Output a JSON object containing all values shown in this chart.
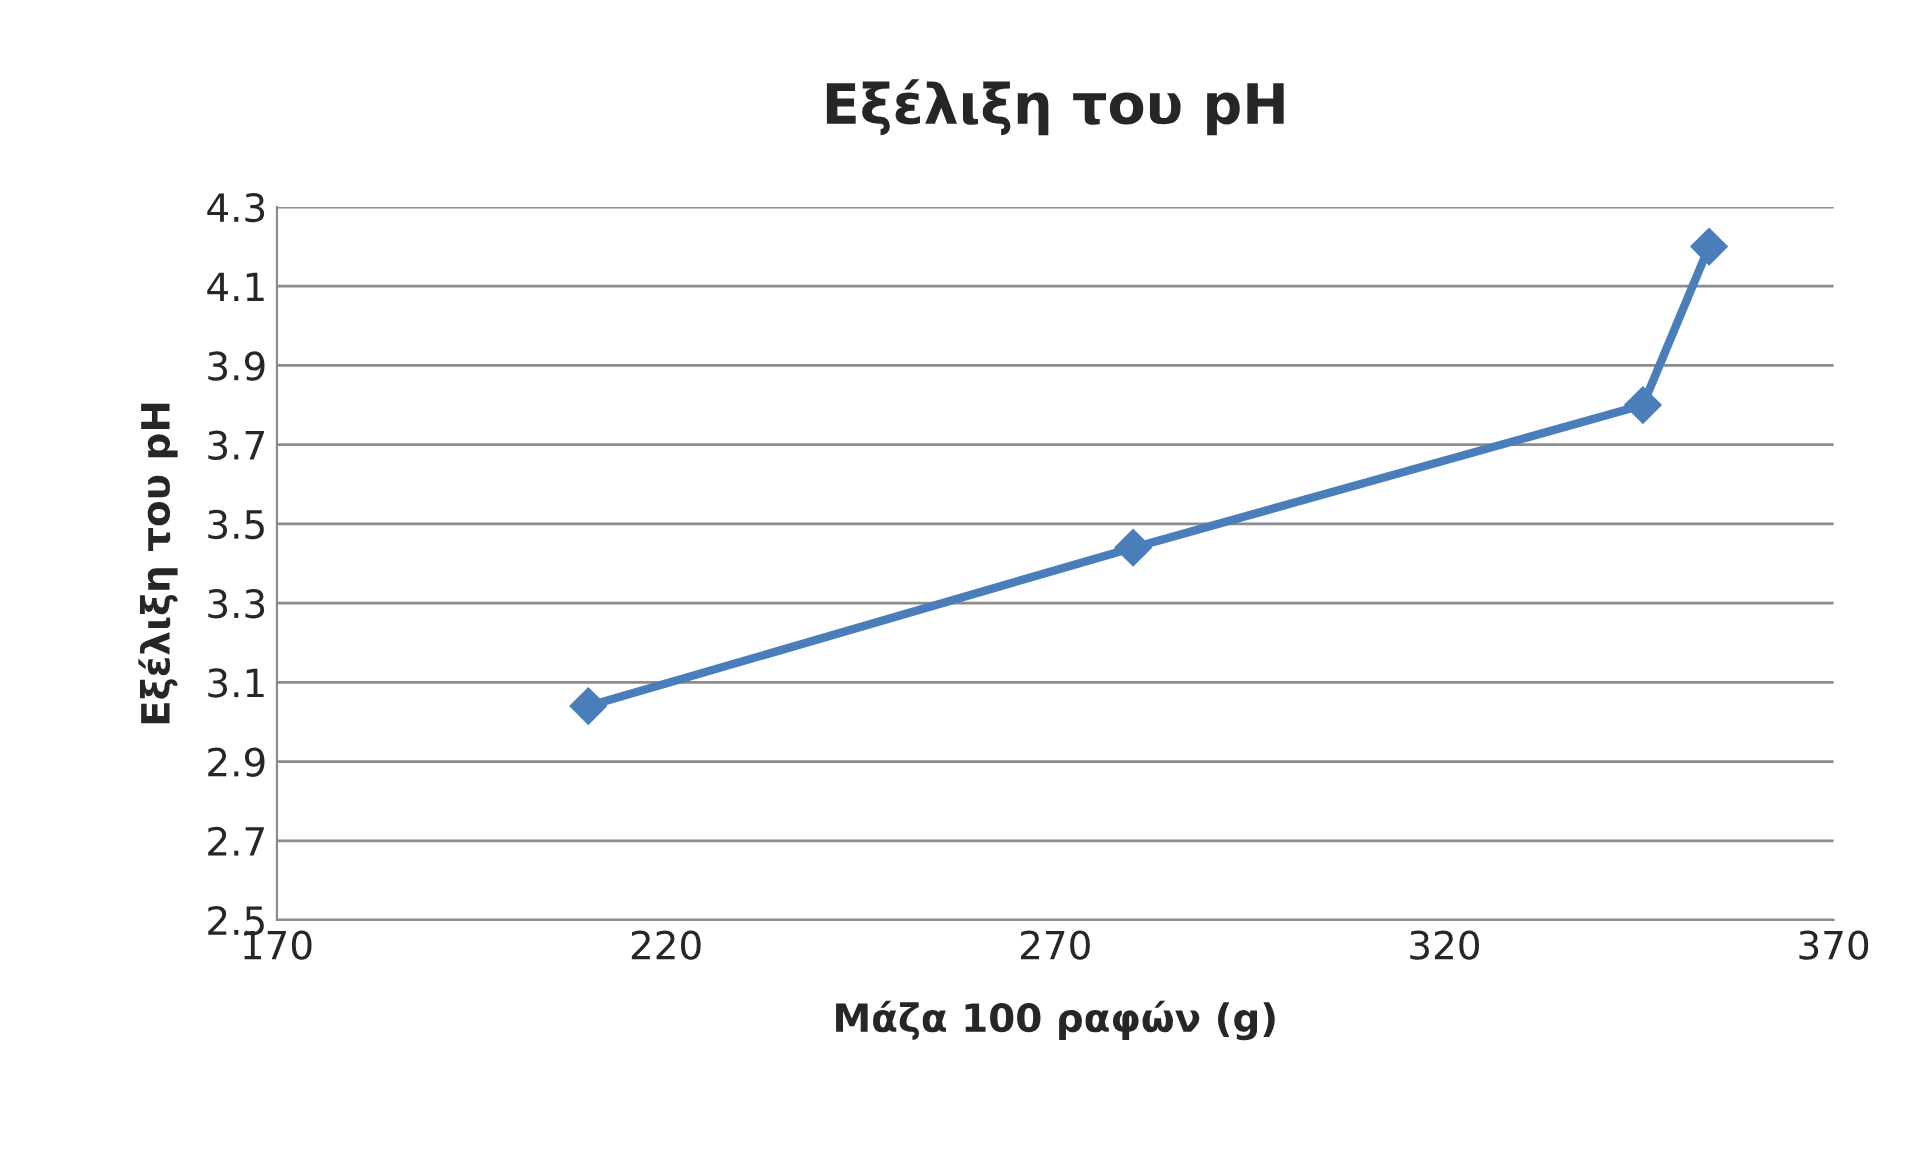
{
  "chart_data": {
    "type": "line",
    "title": "Εξέλιξη του pH",
    "xlabel": "Μάζα 100 ραφών (g)",
    "ylabel": "Εξέλιξη του pH",
    "x": [
      210,
      280,
      345.5,
      354
    ],
    "series": [
      {
        "color": "#4a7ebb",
        "values": [
          3.04,
          3.44,
          3.8,
          4.2
        ]
      }
    ],
    "xlim": [
      170,
      370
    ],
    "xticks": [
      170,
      220,
      270,
      320,
      370
    ],
    "ylim": [
      2.5,
      4.3
    ],
    "yticks": [
      {
        "value": 2.5,
        "label": "2.5"
      },
      {
        "value": 2.7,
        "label": "2.7"
      },
      {
        "value": 2.9,
        "label": "2.9"
      },
      {
        "value": 3.1,
        "label": "3.1"
      },
      {
        "value": 3.3,
        "label": "3.3"
      },
      {
        "value": 3.5,
        "label": "3.5"
      },
      {
        "value": 3.7,
        "label": "3.7"
      },
      {
        "value": 3.9,
        "label": "3.9"
      },
      {
        "value": 4.1,
        "label": "4.1"
      },
      {
        "value": 4.3,
        "label": "4.3"
      }
    ],
    "grid": "y",
    "marker": "diamond",
    "line_style": "solid"
  }
}
